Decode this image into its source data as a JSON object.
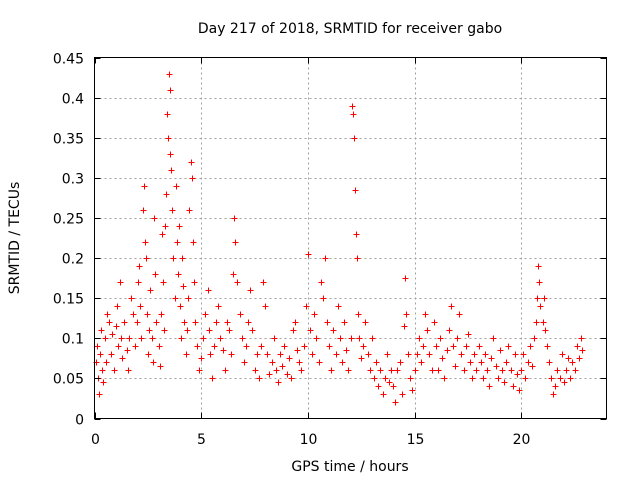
{
  "colors": {
    "series": "#ff0000",
    "axis": "#000000",
    "grid": "#a0a0a0"
  },
  "chart_data": {
    "type": "scatter",
    "title": "Day 217 of 2018, SRMTID for receiver gabo",
    "xlabel": "GPS time / hours",
    "ylabel": "SRMTID / TECUs",
    "xlim": [
      0,
      24
    ],
    "ylim": [
      0,
      0.45
    ],
    "xticks": [
      0,
      5,
      10,
      15,
      20
    ],
    "yticks": [
      0,
      0.05,
      0.1,
      0.15,
      0.2,
      0.25,
      0.3,
      0.35,
      0.4,
      0.45
    ],
    "xtick_labels": [
      "0",
      "5",
      "10",
      "15",
      "20"
    ],
    "ytick_labels": [
      "0",
      "0.05",
      "0.1",
      "0.15",
      "0.2",
      "0.25",
      "0.3",
      "0.35",
      "0.4",
      "0.45"
    ],
    "grid": true,
    "marker": "+",
    "series": [
      {
        "name": "SRMTID",
        "points": [
          [
            0.05,
            0.07
          ],
          [
            0.1,
            0.09
          ],
          [
            0.15,
            0.05
          ],
          [
            0.2,
            0.03
          ],
          [
            0.25,
            0.08
          ],
          [
            0.3,
            0.11
          ],
          [
            0.35,
            0.06
          ],
          [
            0.4,
            0.045
          ],
          [
            0.5,
            0.1
          ],
          [
            0.55,
            0.07
          ],
          [
            0.6,
            0.13
          ],
          [
            0.7,
            0.12
          ],
          [
            0.75,
            0.08
          ],
          [
            0.8,
            0.105
          ],
          [
            0.9,
            0.06
          ],
          [
            1.0,
            0.115
          ],
          [
            1.05,
            0.14
          ],
          [
            1.1,
            0.09
          ],
          [
            1.2,
            0.17
          ],
          [
            1.25,
            0.1
          ],
          [
            1.3,
            0.075
          ],
          [
            1.4,
            0.12
          ],
          [
            1.5,
            0.085
          ],
          [
            1.55,
            0.06
          ],
          [
            1.6,
            0.1
          ],
          [
            1.7,
            0.15
          ],
          [
            1.8,
            0.13
          ],
          [
            1.9,
            0.09
          ],
          [
            2.0,
            0.12
          ],
          [
            2.05,
            0.17
          ],
          [
            2.1,
            0.19
          ],
          [
            2.15,
            0.14
          ],
          [
            2.2,
            0.1
          ],
          [
            2.25,
            0.26
          ],
          [
            2.3,
            0.29
          ],
          [
            2.35,
            0.22
          ],
          [
            2.4,
            0.2
          ],
          [
            2.45,
            0.13
          ],
          [
            2.5,
            0.08
          ],
          [
            2.55,
            0.11
          ],
          [
            2.6,
            0.16
          ],
          [
            2.7,
            0.1
          ],
          [
            2.75,
            0.07
          ],
          [
            2.8,
            0.25
          ],
          [
            2.85,
            0.18
          ],
          [
            2.9,
            0.12
          ],
          [
            3.0,
            0.09
          ],
          [
            3.05,
            0.065
          ],
          [
            3.1,
            0.13
          ],
          [
            3.15,
            0.23
          ],
          [
            3.2,
            0.17
          ],
          [
            3.25,
            0.11
          ],
          [
            3.3,
            0.24
          ],
          [
            3.35,
            0.28
          ],
          [
            3.4,
            0.38
          ],
          [
            3.45,
            0.35
          ],
          [
            3.5,
            0.43
          ],
          [
            3.52,
            0.41
          ],
          [
            3.55,
            0.33
          ],
          [
            3.6,
            0.31
          ],
          [
            3.65,
            0.26
          ],
          [
            3.7,
            0.2
          ],
          [
            3.75,
            0.15
          ],
          [
            3.8,
            0.29
          ],
          [
            3.85,
            0.22
          ],
          [
            3.9,
            0.18
          ],
          [
            3.95,
            0.24
          ],
          [
            4.0,
            0.14
          ],
          [
            4.05,
            0.1
          ],
          [
            4.1,
            0.2
          ],
          [
            4.15,
            0.165
          ],
          [
            4.2,
            0.12
          ],
          [
            4.3,
            0.08
          ],
          [
            4.35,
            0.11
          ],
          [
            4.4,
            0.15
          ],
          [
            4.45,
            0.26
          ],
          [
            4.5,
            0.32
          ],
          [
            4.55,
            0.3
          ],
          [
            4.6,
            0.22
          ],
          [
            4.65,
            0.17
          ],
          [
            4.7,
            0.12
          ],
          [
            4.8,
            0.09
          ],
          [
            4.9,
            0.06
          ],
          [
            5.0,
            0.075
          ],
          [
            5.1,
            0.1
          ],
          [
            5.2,
            0.13
          ],
          [
            5.3,
            0.16
          ],
          [
            5.35,
            0.11
          ],
          [
            5.4,
            0.08
          ],
          [
            5.5,
            0.05
          ],
          [
            5.6,
            0.09
          ],
          [
            5.7,
            0.12
          ],
          [
            5.8,
            0.14
          ],
          [
            5.9,
            0.1
          ],
          [
            6.0,
            0.085
          ],
          [
            6.1,
            0.06
          ],
          [
            6.2,
            0.12
          ],
          [
            6.3,
            0.11
          ],
          [
            6.4,
            0.08
          ],
          [
            6.5,
            0.18
          ],
          [
            6.55,
            0.25
          ],
          [
            6.6,
            0.22
          ],
          [
            6.7,
            0.17
          ],
          [
            6.8,
            0.13
          ],
          [
            6.9,
            0.1
          ],
          [
            7.0,
            0.07
          ],
          [
            7.1,
            0.09
          ],
          [
            7.2,
            0.12
          ],
          [
            7.3,
            0.16
          ],
          [
            7.4,
            0.11
          ],
          [
            7.5,
            0.06
          ],
          [
            7.6,
            0.08
          ],
          [
            7.7,
            0.05
          ],
          [
            7.8,
            0.09
          ],
          [
            7.9,
            0.17
          ],
          [
            8.0,
            0.14
          ],
          [
            8.1,
            0.08
          ],
          [
            8.2,
            0.055
          ],
          [
            8.3,
            0.07
          ],
          [
            8.4,
            0.1
          ],
          [
            8.5,
            0.06
          ],
          [
            8.6,
            0.045
          ],
          [
            8.7,
            0.08
          ],
          [
            8.8,
            0.065
          ],
          [
            8.9,
            0.09
          ],
          [
            9.0,
            0.055
          ],
          [
            9.1,
            0.075
          ],
          [
            9.2,
            0.05
          ],
          [
            9.3,
            0.11
          ],
          [
            9.4,
            0.12
          ],
          [
            9.5,
            0.085
          ],
          [
            9.6,
            0.07
          ],
          [
            9.7,
            0.06
          ],
          [
            9.8,
            0.09
          ],
          [
            9.9,
            0.14
          ],
          [
            10.0,
            0.205
          ],
          [
            10.1,
            0.11
          ],
          [
            10.2,
            0.08
          ],
          [
            10.3,
            0.13
          ],
          [
            10.4,
            0.1
          ],
          [
            10.5,
            0.07
          ],
          [
            10.6,
            0.17
          ],
          [
            10.7,
            0.15
          ],
          [
            10.8,
            0.2
          ],
          [
            10.9,
            0.12
          ],
          [
            11.0,
            0.09
          ],
          [
            11.1,
            0.06
          ],
          [
            11.2,
            0.11
          ],
          [
            11.3,
            0.08
          ],
          [
            11.4,
            0.14
          ],
          [
            11.5,
            0.1
          ],
          [
            11.6,
            0.07
          ],
          [
            11.7,
            0.12
          ],
          [
            11.8,
            0.085
          ],
          [
            11.9,
            0.06
          ],
          [
            12.0,
            0.1
          ],
          [
            12.05,
            0.39
          ],
          [
            12.1,
            0.38
          ],
          [
            12.15,
            0.35
          ],
          [
            12.2,
            0.285
          ],
          [
            12.25,
            0.23
          ],
          [
            12.3,
            0.2
          ],
          [
            12.35,
            0.13
          ],
          [
            12.4,
            0.1
          ],
          [
            12.5,
            0.075
          ],
          [
            12.6,
            0.09
          ],
          [
            12.7,
            0.12
          ],
          [
            12.8,
            0.08
          ],
          [
            12.9,
            0.06
          ],
          [
            13.0,
            0.1
          ],
          [
            13.1,
            0.05
          ],
          [
            13.2,
            0.07
          ],
          [
            13.3,
            0.04
          ],
          [
            13.4,
            0.06
          ],
          [
            13.5,
            0.03
          ],
          [
            13.6,
            0.05
          ],
          [
            13.7,
            0.08
          ],
          [
            13.8,
            0.045
          ],
          [
            13.9,
            0.06
          ],
          [
            14.0,
            0.04
          ],
          [
            14.1,
            0.02
          ],
          [
            14.2,
            0.06
          ],
          [
            14.3,
            0.07
          ],
          [
            14.4,
            0.03
          ],
          [
            14.5,
            0.115
          ],
          [
            14.55,
            0.175
          ],
          [
            14.6,
            0.13
          ],
          [
            14.7,
            0.08
          ],
          [
            14.8,
            0.05
          ],
          [
            14.9,
            0.035
          ],
          [
            15.0,
            0.06
          ],
          [
            15.1,
            0.08
          ],
          [
            15.2,
            0.1
          ],
          [
            15.3,
            0.07
          ],
          [
            15.4,
            0.09
          ],
          [
            15.5,
            0.13
          ],
          [
            15.6,
            0.11
          ],
          [
            15.7,
            0.08
          ],
          [
            15.8,
            0.06
          ],
          [
            15.9,
            0.12
          ],
          [
            16.0,
            0.09
          ],
          [
            16.1,
            0.06
          ],
          [
            16.2,
            0.1
          ],
          [
            16.3,
            0.075
          ],
          [
            16.4,
            0.05
          ],
          [
            16.5,
            0.085
          ],
          [
            16.6,
            0.11
          ],
          [
            16.7,
            0.14
          ],
          [
            16.8,
            0.09
          ],
          [
            16.9,
            0.065
          ],
          [
            17.0,
            0.1
          ],
          [
            17.1,
            0.13
          ],
          [
            17.2,
            0.08
          ],
          [
            17.3,
            0.06
          ],
          [
            17.4,
            0.09
          ],
          [
            17.5,
            0.105
          ],
          [
            17.6,
            0.07
          ],
          [
            17.7,
            0.05
          ],
          [
            17.8,
            0.08
          ],
          [
            17.9,
            0.06
          ],
          [
            18.0,
            0.09
          ],
          [
            18.1,
            0.07
          ],
          [
            18.2,
            0.05
          ],
          [
            18.3,
            0.08
          ],
          [
            18.4,
            0.06
          ],
          [
            18.5,
            0.04
          ],
          [
            18.6,
            0.075
          ],
          [
            18.7,
            0.1
          ],
          [
            18.8,
            0.065
          ],
          [
            18.9,
            0.05
          ],
          [
            19.0,
            0.085
          ],
          [
            19.1,
            0.06
          ],
          [
            19.2,
            0.045
          ],
          [
            19.3,
            0.07
          ],
          [
            19.4,
            0.09
          ],
          [
            19.5,
            0.06
          ],
          [
            19.6,
            0.04
          ],
          [
            19.7,
            0.08
          ],
          [
            19.8,
            0.055
          ],
          [
            19.9,
            0.035
          ],
          [
            20.0,
            0.06
          ],
          [
            20.1,
            0.08
          ],
          [
            20.2,
            0.05
          ],
          [
            20.3,
            0.07
          ],
          [
            20.4,
            0.09
          ],
          [
            20.5,
            0.065
          ],
          [
            20.6,
            0.1
          ],
          [
            20.7,
            0.12
          ],
          [
            20.75,
            0.15
          ],
          [
            20.8,
            0.19
          ],
          [
            20.85,
            0.17
          ],
          [
            20.9,
            0.14
          ],
          [
            21.0,
            0.12
          ],
          [
            21.05,
            0.15
          ],
          [
            21.1,
            0.11
          ],
          [
            21.2,
            0.09
          ],
          [
            21.3,
            0.07
          ],
          [
            21.4,
            0.05
          ],
          [
            21.5,
            0.03
          ],
          [
            21.6,
            0.04
          ],
          [
            21.7,
            0.06
          ],
          [
            21.8,
            0.05
          ],
          [
            21.9,
            0.08
          ],
          [
            22.0,
            0.045
          ],
          [
            22.1,
            0.06
          ],
          [
            22.2,
            0.075
          ],
          [
            22.3,
            0.05
          ],
          [
            22.4,
            0.07
          ],
          [
            22.5,
            0.06
          ],
          [
            22.6,
            0.09
          ],
          [
            22.7,
            0.075
          ],
          [
            22.8,
            0.1
          ],
          [
            22.85,
            0.085
          ]
        ]
      }
    ]
  }
}
